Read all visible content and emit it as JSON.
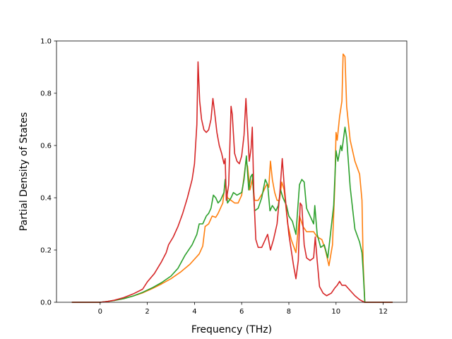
{
  "chart_data": {
    "type": "line",
    "title": "",
    "xlabel": "Frequency (THz)",
    "ylabel": "Partial Density of States",
    "xlim": [
      -1.85,
      13.0
    ],
    "ylim": [
      0.0,
      1.0
    ],
    "xticks": [
      0,
      2,
      4,
      6,
      8,
      10,
      12
    ],
    "yticks": [
      0.0,
      0.2,
      0.4,
      0.6,
      0.8,
      1.0
    ],
    "grid": false,
    "legend": "none",
    "series": [
      {
        "color": "#ff7f0e",
        "points": [
          [
            -1.2,
            0.0
          ],
          [
            -0.5,
            0.0
          ],
          [
            0.0,
            0.0
          ],
          [
            0.3,
            0.003
          ],
          [
            0.6,
            0.007
          ],
          [
            1.0,
            0.014
          ],
          [
            1.4,
            0.024
          ],
          [
            1.8,
            0.036
          ],
          [
            2.2,
            0.052
          ],
          [
            2.6,
            0.07
          ],
          [
            3.0,
            0.09
          ],
          [
            3.4,
            0.115
          ],
          [
            3.8,
            0.145
          ],
          [
            4.2,
            0.185
          ],
          [
            4.35,
            0.215
          ],
          [
            4.45,
            0.29
          ],
          [
            4.6,
            0.3
          ],
          [
            4.75,
            0.33
          ],
          [
            4.9,
            0.325
          ],
          [
            5.0,
            0.34
          ],
          [
            5.2,
            0.38
          ],
          [
            5.3,
            0.46
          ],
          [
            5.4,
            0.4
          ],
          [
            5.55,
            0.39
          ],
          [
            5.7,
            0.38
          ],
          [
            5.85,
            0.38
          ],
          [
            6.0,
            0.41
          ],
          [
            6.1,
            0.48
          ],
          [
            6.18,
            0.54
          ],
          [
            6.25,
            0.52
          ],
          [
            6.35,
            0.43
          ],
          [
            6.45,
            0.47
          ],
          [
            6.55,
            0.39
          ],
          [
            6.7,
            0.39
          ],
          [
            6.9,
            0.42
          ],
          [
            7.05,
            0.45
          ],
          [
            7.15,
            0.44
          ],
          [
            7.22,
            0.54
          ],
          [
            7.3,
            0.47
          ],
          [
            7.4,
            0.42
          ],
          [
            7.5,
            0.39
          ],
          [
            7.6,
            0.39
          ],
          [
            7.7,
            0.46
          ],
          [
            7.8,
            0.43
          ],
          [
            7.95,
            0.3
          ],
          [
            8.1,
            0.24
          ],
          [
            8.3,
            0.19
          ],
          [
            8.45,
            0.33
          ],
          [
            8.6,
            0.29
          ],
          [
            8.75,
            0.27
          ],
          [
            8.9,
            0.27
          ],
          [
            9.05,
            0.27
          ],
          [
            9.2,
            0.25
          ],
          [
            9.4,
            0.24
          ],
          [
            9.55,
            0.2
          ],
          [
            9.7,
            0.14
          ],
          [
            9.85,
            0.22
          ],
          [
            9.95,
            0.45
          ],
          [
            10.0,
            0.65
          ],
          [
            10.05,
            0.62
          ],
          [
            10.15,
            0.71
          ],
          [
            10.25,
            0.77
          ],
          [
            10.3,
            0.95
          ],
          [
            10.38,
            0.94
          ],
          [
            10.45,
            0.75
          ],
          [
            10.6,
            0.62
          ],
          [
            10.8,
            0.54
          ],
          [
            11.0,
            0.49
          ],
          [
            11.1,
            0.39
          ],
          [
            11.15,
            0.15
          ],
          [
            11.22,
            0.0
          ],
          [
            11.5,
            0.0
          ],
          [
            12.2,
            0.0
          ],
          [
            12.4,
            0.0
          ]
        ]
      },
      {
        "color": "#2ca02c",
        "points": [
          [
            -1.2,
            0.0
          ],
          [
            -0.5,
            0.0
          ],
          [
            0.0,
            0.0
          ],
          [
            0.3,
            0.003
          ],
          [
            0.6,
            0.007
          ],
          [
            1.0,
            0.014
          ],
          [
            1.4,
            0.024
          ],
          [
            1.8,
            0.038
          ],
          [
            2.2,
            0.055
          ],
          [
            2.6,
            0.075
          ],
          [
            3.0,
            0.1
          ],
          [
            3.3,
            0.13
          ],
          [
            3.6,
            0.18
          ],
          [
            3.9,
            0.22
          ],
          [
            4.1,
            0.26
          ],
          [
            4.2,
            0.3
          ],
          [
            4.35,
            0.3
          ],
          [
            4.5,
            0.33
          ],
          [
            4.6,
            0.34
          ],
          [
            4.7,
            0.36
          ],
          [
            4.8,
            0.41
          ],
          [
            4.9,
            0.4
          ],
          [
            5.0,
            0.38
          ],
          [
            5.1,
            0.39
          ],
          [
            5.25,
            0.42
          ],
          [
            5.3,
            0.47
          ],
          [
            5.4,
            0.38
          ],
          [
            5.55,
            0.4
          ],
          [
            5.65,
            0.42
          ],
          [
            5.8,
            0.41
          ],
          [
            6.0,
            0.42
          ],
          [
            6.1,
            0.47
          ],
          [
            6.2,
            0.56
          ],
          [
            6.3,
            0.43
          ],
          [
            6.38,
            0.48
          ],
          [
            6.45,
            0.49
          ],
          [
            6.55,
            0.35
          ],
          [
            6.7,
            0.36
          ],
          [
            6.85,
            0.4
          ],
          [
            7.0,
            0.47
          ],
          [
            7.1,
            0.45
          ],
          [
            7.2,
            0.35
          ],
          [
            7.3,
            0.37
          ],
          [
            7.45,
            0.35
          ],
          [
            7.55,
            0.37
          ],
          [
            7.65,
            0.43
          ],
          [
            7.75,
            0.4
          ],
          [
            7.9,
            0.37
          ],
          [
            8.0,
            0.33
          ],
          [
            8.15,
            0.31
          ],
          [
            8.3,
            0.26
          ],
          [
            8.45,
            0.45
          ],
          [
            8.55,
            0.47
          ],
          [
            8.65,
            0.46
          ],
          [
            8.75,
            0.36
          ],
          [
            8.85,
            0.34
          ],
          [
            8.95,
            0.32
          ],
          [
            9.05,
            0.3
          ],
          [
            9.1,
            0.37
          ],
          [
            9.2,
            0.26
          ],
          [
            9.35,
            0.21
          ],
          [
            9.5,
            0.22
          ],
          [
            9.65,
            0.17
          ],
          [
            9.75,
            0.25
          ],
          [
            9.9,
            0.37
          ],
          [
            10.0,
            0.58
          ],
          [
            10.08,
            0.54
          ],
          [
            10.2,
            0.6
          ],
          [
            10.25,
            0.58
          ],
          [
            10.38,
            0.67
          ],
          [
            10.45,
            0.63
          ],
          [
            10.6,
            0.44
          ],
          [
            10.8,
            0.28
          ],
          [
            11.0,
            0.23
          ],
          [
            11.1,
            0.19
          ],
          [
            11.15,
            0.12
          ],
          [
            11.22,
            0.0
          ],
          [
            11.5,
            0.0
          ],
          [
            12.2,
            0.0
          ],
          [
            12.4,
            0.0
          ]
        ]
      },
      {
        "color": "#d62728",
        "points": [
          [
            -1.2,
            0.0
          ],
          [
            -0.5,
            0.0
          ],
          [
            0.0,
            0.0
          ],
          [
            0.3,
            0.003
          ],
          [
            0.6,
            0.008
          ],
          [
            1.0,
            0.018
          ],
          [
            1.4,
            0.032
          ],
          [
            1.8,
            0.05
          ],
          [
            2.0,
            0.078
          ],
          [
            2.3,
            0.11
          ],
          [
            2.6,
            0.155
          ],
          [
            2.8,
            0.19
          ],
          [
            2.9,
            0.22
          ],
          [
            3.1,
            0.25
          ],
          [
            3.3,
            0.29
          ],
          [
            3.5,
            0.34
          ],
          [
            3.7,
            0.4
          ],
          [
            3.9,
            0.47
          ],
          [
            4.0,
            0.53
          ],
          [
            4.1,
            0.68
          ],
          [
            4.15,
            0.92
          ],
          [
            4.22,
            0.77
          ],
          [
            4.3,
            0.7
          ],
          [
            4.4,
            0.66
          ],
          [
            4.5,
            0.65
          ],
          [
            4.6,
            0.66
          ],
          [
            4.7,
            0.7
          ],
          [
            4.78,
            0.78
          ],
          [
            4.85,
            0.73
          ],
          [
            4.95,
            0.65
          ],
          [
            5.05,
            0.6
          ],
          [
            5.15,
            0.57
          ],
          [
            5.25,
            0.53
          ],
          [
            5.3,
            0.55
          ],
          [
            5.35,
            0.39
          ],
          [
            5.45,
            0.45
          ],
          [
            5.55,
            0.75
          ],
          [
            5.6,
            0.72
          ],
          [
            5.7,
            0.57
          ],
          [
            5.8,
            0.54
          ],
          [
            5.9,
            0.53
          ],
          [
            6.0,
            0.56
          ],
          [
            6.1,
            0.64
          ],
          [
            6.18,
            0.78
          ],
          [
            6.25,
            0.66
          ],
          [
            6.32,
            0.54
          ],
          [
            6.4,
            0.59
          ],
          [
            6.45,
            0.67
          ],
          [
            6.52,
            0.4
          ],
          [
            6.6,
            0.24
          ],
          [
            6.7,
            0.21
          ],
          [
            6.85,
            0.21
          ],
          [
            6.95,
            0.23
          ],
          [
            7.1,
            0.26
          ],
          [
            7.22,
            0.2
          ],
          [
            7.35,
            0.24
          ],
          [
            7.5,
            0.3
          ],
          [
            7.62,
            0.42
          ],
          [
            7.72,
            0.55
          ],
          [
            7.8,
            0.45
          ],
          [
            7.9,
            0.35
          ],
          [
            8.0,
            0.26
          ],
          [
            8.1,
            0.2
          ],
          [
            8.2,
            0.14
          ],
          [
            8.3,
            0.09
          ],
          [
            8.4,
            0.16
          ],
          [
            8.48,
            0.38
          ],
          [
            8.55,
            0.37
          ],
          [
            8.65,
            0.22
          ],
          [
            8.75,
            0.17
          ],
          [
            8.9,
            0.16
          ],
          [
            9.05,
            0.17
          ],
          [
            9.12,
            0.25
          ],
          [
            9.2,
            0.16
          ],
          [
            9.3,
            0.06
          ],
          [
            9.45,
            0.035
          ],
          [
            9.6,
            0.025
          ],
          [
            9.8,
            0.035
          ],
          [
            9.95,
            0.055
          ],
          [
            10.05,
            0.065
          ],
          [
            10.15,
            0.08
          ],
          [
            10.25,
            0.065
          ],
          [
            10.4,
            0.065
          ],
          [
            10.6,
            0.045
          ],
          [
            10.8,
            0.025
          ],
          [
            11.0,
            0.01
          ],
          [
            11.2,
            0.0
          ],
          [
            11.5,
            0.0
          ],
          [
            12.2,
            0.0
          ],
          [
            12.4,
            0.0
          ]
        ]
      }
    ]
  }
}
